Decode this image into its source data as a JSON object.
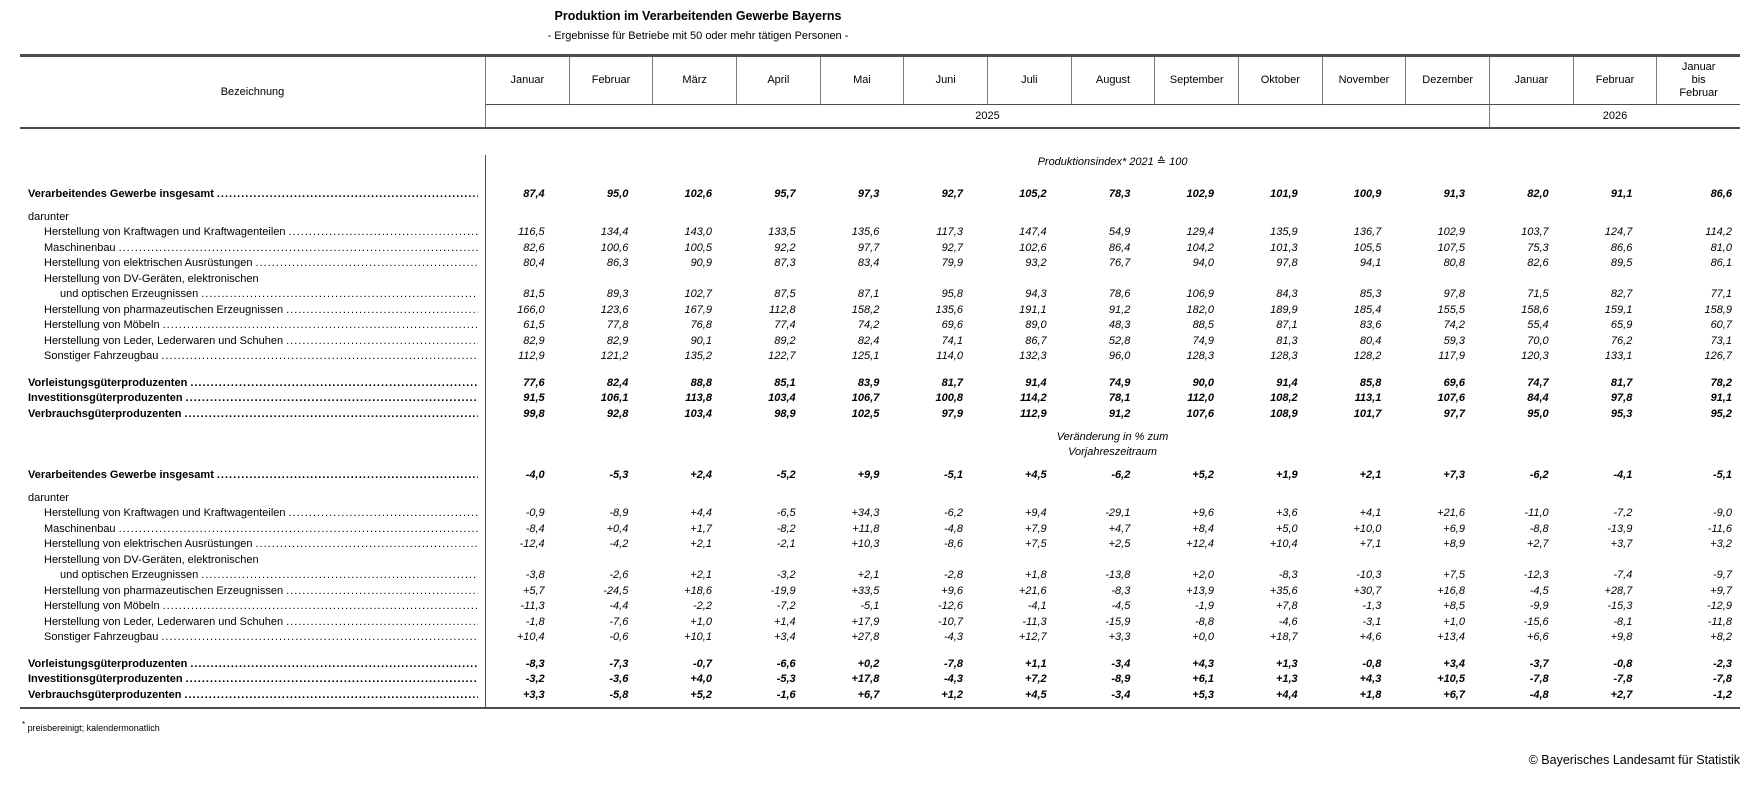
{
  "title": "Produktion im Verarbeitenden Gewerbe Bayerns",
  "subtitle": "- Ergebnisse für Betriebe mit 50 oder mehr tätigen Personen -",
  "header": {
    "label_column": "Bezeichnung",
    "columns": [
      "Januar",
      "Februar",
      "März",
      "April",
      "Mai",
      "Juni",
      "Juli",
      "August",
      "September",
      "Oktober",
      "November",
      "Dezember",
      "Januar",
      "Februar",
      "Januar\nbis\nFebruar"
    ],
    "year_2025": "2025",
    "year_2026": "2026"
  },
  "sections": [
    {
      "caption_lines": [
        "Produktionsindex* 2021 ≙ 100"
      ],
      "rows": [
        {
          "kind": "total",
          "label": "Verarbeitendes Gewerbe insgesamt",
          "values": [
            "87,4",
            "95,0",
            "102,6",
            "95,7",
            "97,3",
            "92,7",
            "105,2",
            "78,3",
            "102,9",
            "101,9",
            "100,9",
            "91,3",
            "82,0",
            "91,1",
            "86,6"
          ]
        },
        {
          "kind": "heading",
          "label": "darunter"
        },
        {
          "kind": "item",
          "label": "Herstellung von Kraftwagen und Kraftwagenteilen",
          "values": [
            "116,5",
            "134,4",
            "143,0",
            "133,5",
            "135,6",
            "117,3",
            "147,4",
            "54,9",
            "129,4",
            "135,9",
            "136,7",
            "102,9",
            "103,7",
            "124,7",
            "114,2"
          ]
        },
        {
          "kind": "item",
          "label": "Maschinenbau",
          "values": [
            "82,6",
            "100,6",
            "100,5",
            "92,2",
            "97,7",
            "92,7",
            "102,6",
            "86,4",
            "104,2",
            "101,3",
            "105,5",
            "107,5",
            "75,3",
            "86,6",
            "81,0"
          ]
        },
        {
          "kind": "item",
          "label": "Herstellung von elektrischen Ausrüstungen",
          "values": [
            "80,4",
            "86,3",
            "90,9",
            "87,3",
            "83,4",
            "79,9",
            "93,2",
            "76,7",
            "94,0",
            "97,8",
            "94,1",
            "80,8",
            "82,6",
            "89,5",
            "86,1"
          ]
        },
        {
          "kind": "item",
          "label": "Herstellung von DV-Geräten, elektronischen",
          "label2": "und optischen Erzeugnissen",
          "values": [
            "81,5",
            "89,3",
            "102,7",
            "87,5",
            "87,1",
            "95,8",
            "94,3",
            "78,6",
            "106,9",
            "84,3",
            "85,3",
            "97,8",
            "71,5",
            "82,7",
            "77,1"
          ]
        },
        {
          "kind": "item",
          "label": "Herstellung von pharmazeutischen Erzeugnissen",
          "values": [
            "166,0",
            "123,6",
            "167,9",
            "112,8",
            "158,2",
            "135,6",
            "191,1",
            "91,2",
            "182,0",
            "189,9",
            "185,4",
            "155,5",
            "158,6",
            "159,1",
            "158,9"
          ]
        },
        {
          "kind": "item",
          "label": "Herstellung von Möbeln",
          "values": [
            "61,5",
            "77,8",
            "76,8",
            "77,4",
            "74,2",
            "69,6",
            "89,0",
            "48,3",
            "88,5",
            "87,1",
            "83,6",
            "74,2",
            "55,4",
            "65,9",
            "60,7"
          ]
        },
        {
          "kind": "item",
          "label": "Herstellung von Leder, Lederwaren und Schuhen",
          "values": [
            "82,9",
            "82,9",
            "90,1",
            "89,2",
            "82,4",
            "74,1",
            "86,7",
            "52,8",
            "74,9",
            "81,3",
            "80,4",
            "59,3",
            "70,0",
            "76,2",
            "73,1"
          ]
        },
        {
          "kind": "item",
          "label": "Sonstiger Fahrzeugbau",
          "values": [
            "112,9",
            "121,2",
            "135,2",
            "122,7",
            "125,1",
            "114,0",
            "132,3",
            "96,0",
            "128,3",
            "128,3",
            "128,2",
            "117,9",
            "120,3",
            "133,1",
            "126,7"
          ]
        },
        {
          "kind": "total",
          "label": "Vorleistungsgüterproduzenten",
          "values": [
            "77,6",
            "82,4",
            "88,8",
            "85,1",
            "83,9",
            "81,7",
            "91,4",
            "74,9",
            "90,0",
            "91,4",
            "85,8",
            "69,6",
            "74,7",
            "81,7",
            "78,2"
          ]
        },
        {
          "kind": "total",
          "label": "Investitionsgüterproduzenten",
          "values": [
            "91,5",
            "106,1",
            "113,8",
            "103,4",
            "106,7",
            "100,8",
            "114,2",
            "78,1",
            "112,0",
            "108,2",
            "113,1",
            "107,6",
            "84,4",
            "97,8",
            "91,1"
          ]
        },
        {
          "kind": "total",
          "label": "Verbrauchsgüterproduzenten",
          "values": [
            "99,8",
            "92,8",
            "103,4",
            "98,9",
            "102,5",
            "97,9",
            "112,9",
            "91,2",
            "107,6",
            "108,9",
            "101,7",
            "97,7",
            "95,0",
            "95,3",
            "95,2"
          ]
        }
      ]
    },
    {
      "caption_lines": [
        "Veränderung in % zum",
        "Vorjahreszeitraum"
      ],
      "rows": [
        {
          "kind": "total",
          "label": "Verarbeitendes Gewerbe insgesamt",
          "values": [
            "-4,0",
            "-5,3",
            "+2,4",
            "-5,2",
            "+9,9",
            "-5,1",
            "+4,5",
            "-6,2",
            "+5,2",
            "+1,9",
            "+2,1",
            "+7,3",
            "-6,2",
            "-4,1",
            "-5,1"
          ]
        },
        {
          "kind": "heading",
          "label": "darunter"
        },
        {
          "kind": "item",
          "label": "Herstellung von Kraftwagen und Kraftwagenteilen",
          "values": [
            "-0,9",
            "-8,9",
            "+4,4",
            "-6,5",
            "+34,3",
            "-6,2",
            "+9,4",
            "-29,1",
            "+9,6",
            "+3,6",
            "+4,1",
            "+21,6",
            "-11,0",
            "-7,2",
            "-9,0"
          ]
        },
        {
          "kind": "item",
          "label": "Maschinenbau",
          "values": [
            "-8,4",
            "+0,4",
            "+1,7",
            "-8,2",
            "+11,8",
            "-4,8",
            "+7,9",
            "+4,7",
            "+8,4",
            "+5,0",
            "+10,0",
            "+6,9",
            "-8,8",
            "-13,9",
            "-11,6"
          ]
        },
        {
          "kind": "item",
          "label": "Herstellung von elektrischen Ausrüstungen",
          "values": [
            "-12,4",
            "-4,2",
            "+2,1",
            "-2,1",
            "+10,3",
            "-8,6",
            "+7,5",
            "+2,5",
            "+12,4",
            "+10,4",
            "+7,1",
            "+8,9",
            "+2,7",
            "+3,7",
            "+3,2"
          ]
        },
        {
          "kind": "item",
          "label": "Herstellung von DV-Geräten, elektronischen",
          "label2": "und optischen Erzeugnissen",
          "values": [
            "-3,8",
            "-2,6",
            "+2,1",
            "-3,2",
            "+2,1",
            "-2,8",
            "+1,8",
            "-13,8",
            "+2,0",
            "-8,3",
            "-10,3",
            "+7,5",
            "-12,3",
            "-7,4",
            "-9,7"
          ]
        },
        {
          "kind": "item",
          "label": "Herstellung von pharmazeutischen Erzeugnissen",
          "values": [
            "+5,7",
            "-24,5",
            "+18,6",
            "-19,9",
            "+33,5",
            "+9,6",
            "+21,6",
            "-8,3",
            "+13,9",
            "+35,6",
            "+30,7",
            "+16,8",
            "-4,5",
            "+28,7",
            "+9,7"
          ]
        },
        {
          "kind": "item",
          "label": "Herstellung von Möbeln",
          "values": [
            "-11,3",
            "-4,4",
            "-2,2",
            "-7,2",
            "-5,1",
            "-12,6",
            "-4,1",
            "-4,5",
            "-1,9",
            "+7,8",
            "-1,3",
            "+8,5",
            "-9,9",
            "-15,3",
            "-12,9"
          ]
        },
        {
          "kind": "item",
          "label": "Herstellung von Leder, Lederwaren und Schuhen",
          "values": [
            "-1,8",
            "-7,6",
            "+1,0",
            "+1,4",
            "+17,9",
            "-10,7",
            "-11,3",
            "-15,9",
            "-8,8",
            "-4,6",
            "-3,1",
            "+1,0",
            "-15,6",
            "-8,1",
            "-11,8"
          ]
        },
        {
          "kind": "item",
          "label": "Sonstiger Fahrzeugbau",
          "values": [
            "+10,4",
            "-0,6",
            "+10,1",
            "+3,4",
            "+27,8",
            "-4,3",
            "+12,7",
            "+3,3",
            "+0,0",
            "+18,7",
            "+4,6",
            "+13,4",
            "+6,6",
            "+9,8",
            "+8,2"
          ]
        },
        {
          "kind": "total",
          "label": "Vorleistungsgüterproduzenten",
          "values": [
            "-8,3",
            "-7,3",
            "-0,7",
            "-6,6",
            "+0,2",
            "-7,8",
            "+1,1",
            "-3,4",
            "+4,3",
            "+1,3",
            "-0,8",
            "+3,4",
            "-3,7",
            "-0,8",
            "-2,3"
          ]
        },
        {
          "kind": "total",
          "label": "Investitionsgüterproduzenten",
          "values": [
            "-3,2",
            "-3,6",
            "+4,0",
            "-5,3",
            "+17,8",
            "-4,3",
            "+7,2",
            "-8,9",
            "+6,1",
            "+1,3",
            "+4,3",
            "+10,5",
            "-7,8",
            "-7,8",
            "-7,8"
          ]
        },
        {
          "kind": "total",
          "label": "Verbrauchsgüterproduzenten",
          "values": [
            "+3,3",
            "-5,8",
            "+5,2",
            "-1,6",
            "+6,7",
            "+1,2",
            "+4,5",
            "-3,4",
            "+5,3",
            "+4,4",
            "+1,8",
            "+6,7",
            "-4,8",
            "+2,7",
            "-1,2"
          ]
        }
      ]
    }
  ],
  "footnote_marker": "*",
  "footnote_text": "preisbereinigt; kalendermonatlich",
  "copyright": "© Bayerisches Landesamt für Statistik"
}
